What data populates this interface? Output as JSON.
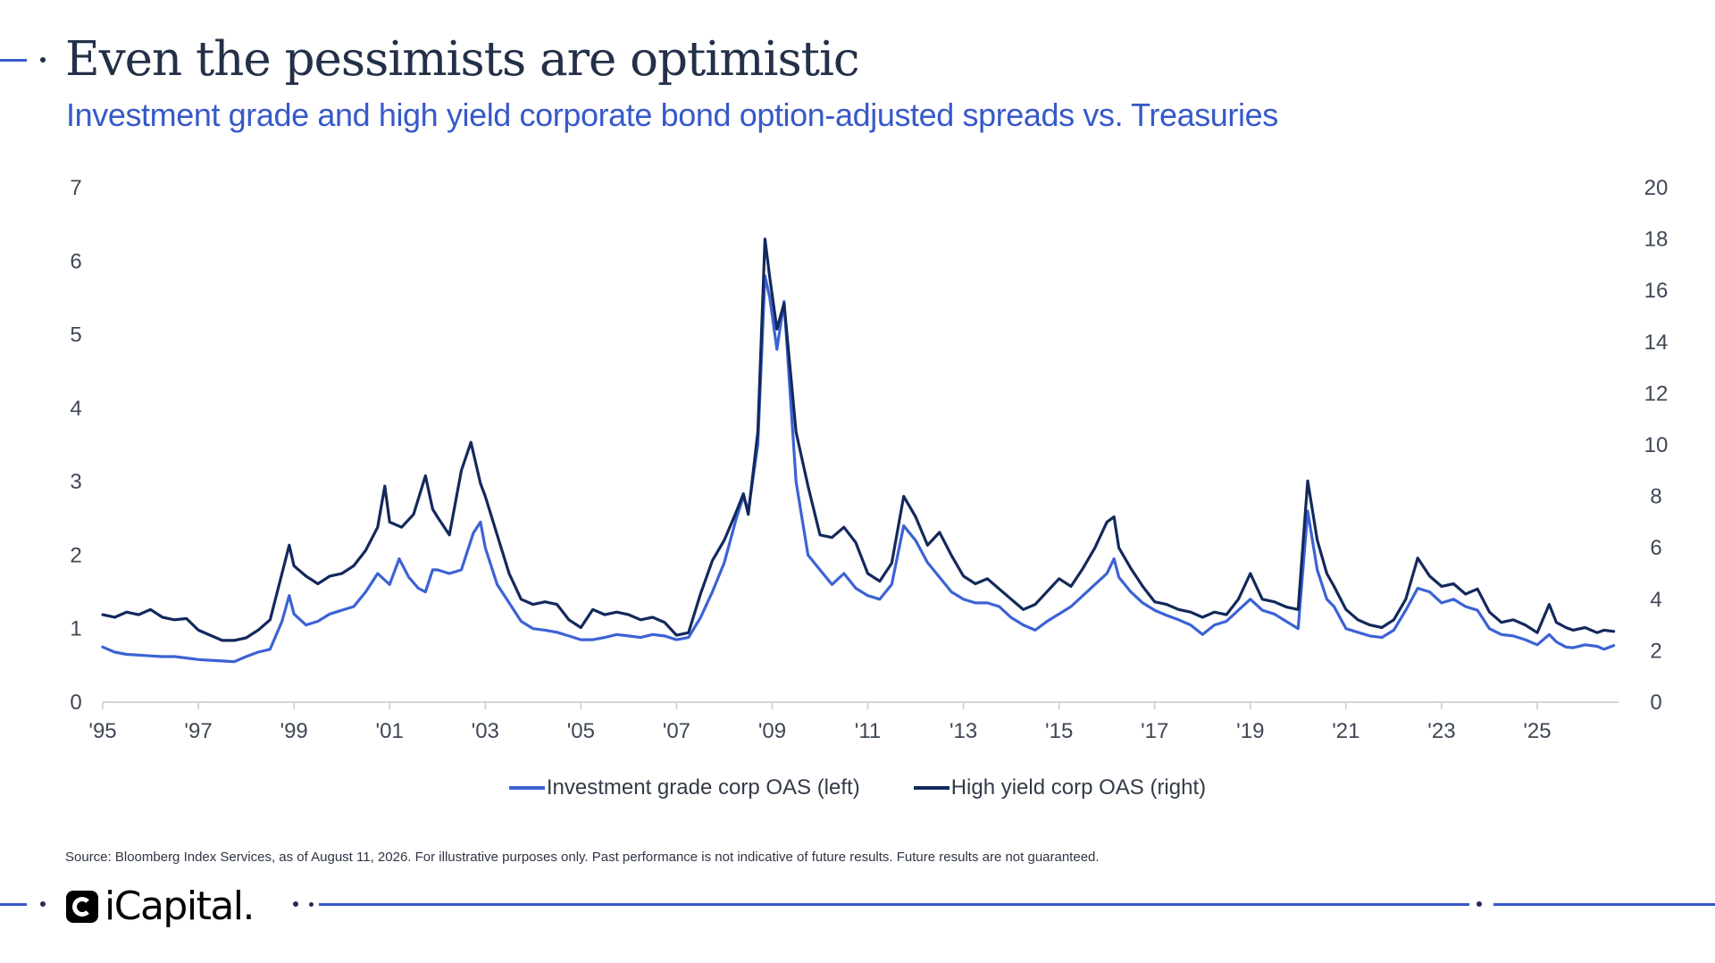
{
  "header": {
    "title": "Even the pessimists are optimistic",
    "subtitle": "Investment grade and high yield corporate bond option-adjusted spreads vs. Treasuries"
  },
  "colors": {
    "ig": "#3c62d4",
    "hy": "#13295c",
    "accent": "#3659c9",
    "axis": "#d0d4da"
  },
  "chart_data": {
    "type": "line",
    "x_ticks": [
      "'95",
      "'97",
      "'99",
      "'01",
      "'03",
      "'05",
      "'07",
      "'09",
      "'11",
      "'13",
      "'15",
      "'17",
      "'19",
      "'21",
      "'23",
      "'25"
    ],
    "x_range": [
      1995,
      2026.7
    ],
    "y_left": {
      "ticks": [
        "0",
        "1",
        "2",
        "3",
        "4",
        "5",
        "6",
        "7"
      ],
      "range": [
        0,
        7
      ]
    },
    "y_right": {
      "ticks": [
        "0",
        "2",
        "4",
        "6",
        "8",
        "10",
        "12",
        "14",
        "16",
        "18",
        "20"
      ],
      "range": [
        0,
        20
      ]
    },
    "grid": false,
    "legend_position": "bottom",
    "series": [
      {
        "name": "Investment grade corp OAS (left)",
        "axis": "left",
        "points": [
          [
            1995,
            0.75
          ],
          [
            1995.25,
            0.68
          ],
          [
            1995.5,
            0.65
          ],
          [
            1995.75,
            0.64
          ],
          [
            1996,
            0.63
          ],
          [
            1996.25,
            0.62
          ],
          [
            1996.5,
            0.62
          ],
          [
            1996.75,
            0.6
          ],
          [
            1997,
            0.58
          ],
          [
            1997.25,
            0.57
          ],
          [
            1997.5,
            0.56
          ],
          [
            1997.75,
            0.55
          ],
          [
            1998,
            0.62
          ],
          [
            1998.25,
            0.68
          ],
          [
            1998.5,
            0.72
          ],
          [
            1998.75,
            1.1
          ],
          [
            1998.9,
            1.45
          ],
          [
            1999,
            1.2
          ],
          [
            1999.25,
            1.05
          ],
          [
            1999.5,
            1.1
          ],
          [
            1999.75,
            1.2
          ],
          [
            2000,
            1.25
          ],
          [
            2000.25,
            1.3
          ],
          [
            2000.5,
            1.5
          ],
          [
            2000.75,
            1.75
          ],
          [
            2001,
            1.6
          ],
          [
            2001.2,
            1.95
          ],
          [
            2001.4,
            1.7
          ],
          [
            2001.6,
            1.55
          ],
          [
            2001.75,
            1.5
          ],
          [
            2001.9,
            1.8
          ],
          [
            2002,
            1.8
          ],
          [
            2002.25,
            1.75
          ],
          [
            2002.5,
            1.8
          ],
          [
            2002.75,
            2.3
          ],
          [
            2002.9,
            2.45
          ],
          [
            2003,
            2.1
          ],
          [
            2003.25,
            1.6
          ],
          [
            2003.5,
            1.35
          ],
          [
            2003.75,
            1.1
          ],
          [
            2004,
            1.0
          ],
          [
            2004.25,
            0.98
          ],
          [
            2004.5,
            0.95
          ],
          [
            2004.75,
            0.9
          ],
          [
            2005,
            0.85
          ],
          [
            2005.25,
            0.85
          ],
          [
            2005.5,
            0.88
          ],
          [
            2005.75,
            0.92
          ],
          [
            2006,
            0.9
          ],
          [
            2006.25,
            0.88
          ],
          [
            2006.5,
            0.92
          ],
          [
            2006.75,
            0.9
          ],
          [
            2007,
            0.85
          ],
          [
            2007.25,
            0.88
          ],
          [
            2007.5,
            1.15
          ],
          [
            2007.75,
            1.5
          ],
          [
            2008,
            1.9
          ],
          [
            2008.25,
            2.5
          ],
          [
            2008.4,
            2.8
          ],
          [
            2008.5,
            2.6
          ],
          [
            2008.7,
            3.5
          ],
          [
            2008.85,
            5.8
          ],
          [
            2008.95,
            5.5
          ],
          [
            2009.1,
            4.8
          ],
          [
            2009.25,
            5.45
          ],
          [
            2009.5,
            3.0
          ],
          [
            2009.75,
            2.0
          ],
          [
            2010,
            1.8
          ],
          [
            2010.25,
            1.6
          ],
          [
            2010.5,
            1.75
          ],
          [
            2010.75,
            1.55
          ],
          [
            2011,
            1.45
          ],
          [
            2011.25,
            1.4
          ],
          [
            2011.5,
            1.6
          ],
          [
            2011.75,
            2.4
          ],
          [
            2012,
            2.2
          ],
          [
            2012.25,
            1.9
          ],
          [
            2012.5,
            1.7
          ],
          [
            2012.75,
            1.5
          ],
          [
            2013,
            1.4
          ],
          [
            2013.25,
            1.35
          ],
          [
            2013.5,
            1.35
          ],
          [
            2013.75,
            1.3
          ],
          [
            2014,
            1.15
          ],
          [
            2014.25,
            1.05
          ],
          [
            2014.5,
            0.98
          ],
          [
            2014.75,
            1.1
          ],
          [
            2015,
            1.2
          ],
          [
            2015.25,
            1.3
          ],
          [
            2015.5,
            1.45
          ],
          [
            2015.75,
            1.6
          ],
          [
            2016,
            1.75
          ],
          [
            2016.15,
            1.95
          ],
          [
            2016.25,
            1.7
          ],
          [
            2016.5,
            1.5
          ],
          [
            2016.75,
            1.35
          ],
          [
            2017,
            1.25
          ],
          [
            2017.25,
            1.18
          ],
          [
            2017.5,
            1.12
          ],
          [
            2017.75,
            1.05
          ],
          [
            2018,
            0.92
          ],
          [
            2018.25,
            1.05
          ],
          [
            2018.5,
            1.1
          ],
          [
            2018.75,
            1.25
          ],
          [
            2019,
            1.4
          ],
          [
            2019.25,
            1.25
          ],
          [
            2019.5,
            1.2
          ],
          [
            2019.75,
            1.1
          ],
          [
            2020,
            1.0
          ],
          [
            2020.2,
            2.6
          ],
          [
            2020.4,
            1.8
          ],
          [
            2020.6,
            1.4
          ],
          [
            2020.75,
            1.3
          ],
          [
            2021,
            1.0
          ],
          [
            2021.25,
            0.95
          ],
          [
            2021.5,
            0.9
          ],
          [
            2021.75,
            0.88
          ],
          [
            2022,
            0.98
          ],
          [
            2022.25,
            1.25
          ],
          [
            2022.5,
            1.55
          ],
          [
            2022.75,
            1.5
          ],
          [
            2023,
            1.35
          ],
          [
            2023.25,
            1.4
          ],
          [
            2023.5,
            1.3
          ],
          [
            2023.75,
            1.25
          ],
          [
            2024,
            1.0
          ],
          [
            2024.25,
            0.92
          ],
          [
            2024.5,
            0.9
          ],
          [
            2024.75,
            0.85
          ],
          [
            2025,
            0.78
          ],
          [
            2025.25,
            0.92
          ],
          [
            2025.4,
            0.82
          ],
          [
            2025.6,
            0.75
          ],
          [
            2025.75,
            0.74
          ],
          [
            2026,
            0.78
          ],
          [
            2026.25,
            0.76
          ],
          [
            2026.4,
            0.72
          ],
          [
            2026.6,
            0.77
          ]
        ]
      },
      {
        "name": "High yield corp OAS (right)",
        "axis": "right",
        "points": [
          [
            1995,
            3.4
          ],
          [
            1995.25,
            3.3
          ],
          [
            1995.5,
            3.5
          ],
          [
            1995.75,
            3.4
          ],
          [
            1996,
            3.6
          ],
          [
            1996.25,
            3.3
          ],
          [
            1996.5,
            3.2
          ],
          [
            1996.75,
            3.25
          ],
          [
            1997,
            2.8
          ],
          [
            1997.25,
            2.6
          ],
          [
            1997.5,
            2.4
          ],
          [
            1997.75,
            2.4
          ],
          [
            1998,
            2.5
          ],
          [
            1998.25,
            2.8
          ],
          [
            1998.5,
            3.2
          ],
          [
            1998.75,
            5.0
          ],
          [
            1998.9,
            6.1
          ],
          [
            1999,
            5.3
          ],
          [
            1999.25,
            4.9
          ],
          [
            1999.5,
            4.6
          ],
          [
            1999.75,
            4.9
          ],
          [
            2000,
            5.0
          ],
          [
            2000.25,
            5.3
          ],
          [
            2000.5,
            5.9
          ],
          [
            2000.75,
            6.8
          ],
          [
            2000.9,
            8.4
          ],
          [
            2001,
            7.0
          ],
          [
            2001.25,
            6.8
          ],
          [
            2001.5,
            7.3
          ],
          [
            2001.75,
            8.8
          ],
          [
            2001.9,
            7.5
          ],
          [
            2002,
            7.2
          ],
          [
            2002.25,
            6.5
          ],
          [
            2002.5,
            9.0
          ],
          [
            2002.7,
            10.1
          ],
          [
            2002.9,
            8.5
          ],
          [
            2003,
            8.0
          ],
          [
            2003.25,
            6.5
          ],
          [
            2003.5,
            5.0
          ],
          [
            2003.75,
            4.0
          ],
          [
            2004,
            3.8
          ],
          [
            2004.25,
            3.9
          ],
          [
            2004.5,
            3.8
          ],
          [
            2004.75,
            3.2
          ],
          [
            2005,
            2.9
          ],
          [
            2005.25,
            3.6
          ],
          [
            2005.5,
            3.4
          ],
          [
            2005.75,
            3.5
          ],
          [
            2006,
            3.4
          ],
          [
            2006.25,
            3.2
          ],
          [
            2006.5,
            3.3
          ],
          [
            2006.75,
            3.1
          ],
          [
            2007,
            2.6
          ],
          [
            2007.25,
            2.7
          ],
          [
            2007.5,
            4.2
          ],
          [
            2007.75,
            5.5
          ],
          [
            2008,
            6.3
          ],
          [
            2008.25,
            7.4
          ],
          [
            2008.4,
            8.1
          ],
          [
            2008.5,
            7.3
          ],
          [
            2008.7,
            10.5
          ],
          [
            2008.85,
            18.0
          ],
          [
            2008.95,
            16.5
          ],
          [
            2009.1,
            14.5
          ],
          [
            2009.25,
            15.5
          ],
          [
            2009.5,
            10.5
          ],
          [
            2009.75,
            8.4
          ],
          [
            2010,
            6.5
          ],
          [
            2010.25,
            6.4
          ],
          [
            2010.5,
            6.8
          ],
          [
            2010.75,
            6.2
          ],
          [
            2011,
            5.0
          ],
          [
            2011.25,
            4.7
          ],
          [
            2011.5,
            5.4
          ],
          [
            2011.75,
            8.0
          ],
          [
            2012,
            7.2
          ],
          [
            2012.25,
            6.1
          ],
          [
            2012.5,
            6.6
          ],
          [
            2012.75,
            5.7
          ],
          [
            2013,
            4.9
          ],
          [
            2013.25,
            4.6
          ],
          [
            2013.5,
            4.8
          ],
          [
            2013.75,
            4.4
          ],
          [
            2014,
            4.0
          ],
          [
            2014.25,
            3.6
          ],
          [
            2014.5,
            3.8
          ],
          [
            2014.75,
            4.3
          ],
          [
            2015,
            4.8
          ],
          [
            2015.25,
            4.5
          ],
          [
            2015.5,
            5.2
          ],
          [
            2015.75,
            6.0
          ],
          [
            2016,
            7.0
          ],
          [
            2016.15,
            7.2
          ],
          [
            2016.25,
            6.0
          ],
          [
            2016.5,
            5.2
          ],
          [
            2016.75,
            4.5
          ],
          [
            2017,
            3.9
          ],
          [
            2017.25,
            3.8
          ],
          [
            2017.5,
            3.6
          ],
          [
            2017.75,
            3.5
          ],
          [
            2018,
            3.3
          ],
          [
            2018.25,
            3.5
          ],
          [
            2018.5,
            3.4
          ],
          [
            2018.75,
            4.0
          ],
          [
            2019,
            5.0
          ],
          [
            2019.25,
            4.0
          ],
          [
            2019.5,
            3.9
          ],
          [
            2019.75,
            3.7
          ],
          [
            2020,
            3.6
          ],
          [
            2020.2,
            8.6
          ],
          [
            2020.4,
            6.3
          ],
          [
            2020.6,
            5.0
          ],
          [
            2020.75,
            4.5
          ],
          [
            2021,
            3.6
          ],
          [
            2021.25,
            3.2
          ],
          [
            2021.5,
            3.0
          ],
          [
            2021.75,
            2.9
          ],
          [
            2022,
            3.2
          ],
          [
            2022.25,
            4.0
          ],
          [
            2022.5,
            5.6
          ],
          [
            2022.75,
            4.9
          ],
          [
            2023,
            4.5
          ],
          [
            2023.25,
            4.6
          ],
          [
            2023.5,
            4.2
          ],
          [
            2023.75,
            4.4
          ],
          [
            2024,
            3.5
          ],
          [
            2024.25,
            3.1
          ],
          [
            2024.5,
            3.2
          ],
          [
            2024.75,
            3.0
          ],
          [
            2025,
            2.7
          ],
          [
            2025.25,
            3.8
          ],
          [
            2025.4,
            3.1
          ],
          [
            2025.6,
            2.9
          ],
          [
            2025.75,
            2.8
          ],
          [
            2026,
            2.9
          ],
          [
            2026.25,
            2.7
          ],
          [
            2026.4,
            2.8
          ],
          [
            2026.6,
            2.75
          ]
        ]
      }
    ]
  },
  "legend": {
    "ig_label": "Investment grade corp OAS (left)",
    "hy_label": "High yield corp OAS (right)"
  },
  "footer": {
    "source": "Source: Bloomberg Index Services, as of August 11, 2026. For illustrative purposes only. Past performance is not indicative of future results. Future results are not guaranteed.",
    "logo_text": "iCapital."
  }
}
